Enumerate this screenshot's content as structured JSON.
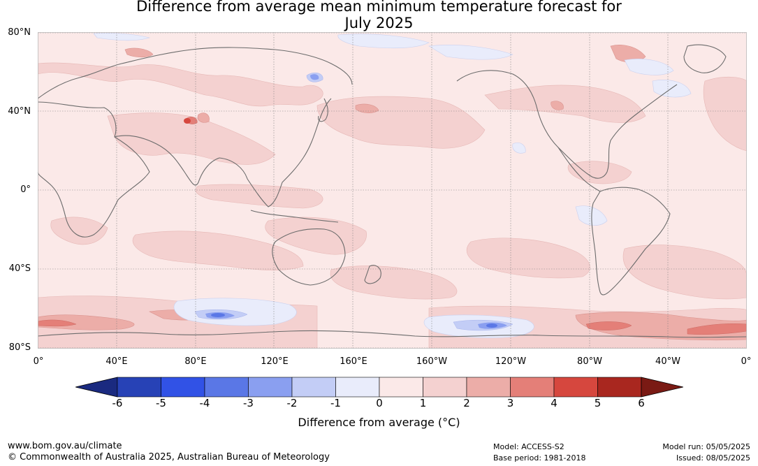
{
  "title": {
    "line1": "Difference from average mean minimum temperature forecast for",
    "line2": "July 2025"
  },
  "map": {
    "lat_labels": [
      "80°N",
      "40°N",
      "0°",
      "40°S",
      "80°S"
    ],
    "lon_labels": [
      "0°",
      "40°E",
      "80°E",
      "120°E",
      "160°E",
      "160°W",
      "120°W",
      "80°W",
      "40°W",
      "0°"
    ]
  },
  "legend": {
    "ticks": [
      "-6",
      "-5",
      "-4",
      "-3",
      "-2",
      "-1",
      "0",
      "1",
      "2",
      "3",
      "4",
      "5",
      "6"
    ],
    "colors": [
      "#1a2a80",
      "#2742b6",
      "#3152e6",
      "#5a77e6",
      "#8a9ff0",
      "#c3cdf6",
      "#e9ecfb",
      "#fbe9e8",
      "#f4d1d0",
      "#ecada8",
      "#e47f78",
      "#d6473e",
      "#a9271f",
      "#7a1a14"
    ],
    "label": "Difference from average (°C)"
  },
  "footer": {
    "url": "www.bom.gov.au/climate",
    "copyright": "© Commonwealth of Australia 2025, Australian Bureau of Meteorology",
    "model": "Model: ACCESS-S2",
    "base_period": "Base period: 1981-2018",
    "model_run": "Model run: 05/05/2025",
    "issued": "Issued: 08/05/2025"
  }
}
